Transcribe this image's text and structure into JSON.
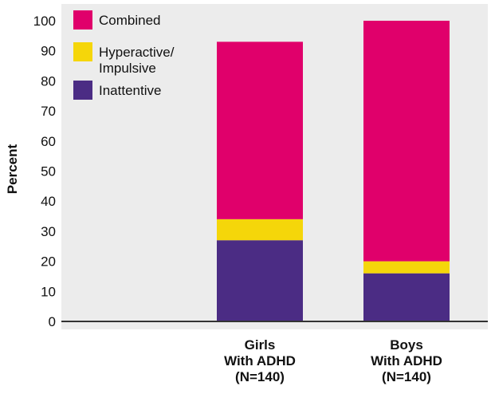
{
  "chart_data": {
    "type": "bar",
    "stacked": true,
    "categories": [
      [
        "Girls",
        "With ADHD",
        "(N=140)"
      ],
      [
        "Boys",
        "With ADHD",
        "(N=140)"
      ]
    ],
    "series": [
      {
        "name": "Inattentive",
        "legend_lines": [
          "Inattentive"
        ],
        "color": "#4b2c84",
        "values": [
          27,
          16
        ]
      },
      {
        "name": "Hyperactive/ Impulsive",
        "legend_lines": [
          "Hyperactive/",
          "Impulsive"
        ],
        "color": "#f5d60a",
        "values": [
          7,
          4
        ]
      },
      {
        "name": "Combined",
        "legend_lines": [
          "Combined"
        ],
        "color": "#e0006b",
        "values": [
          59,
          80
        ]
      }
    ],
    "legend_order": [
      "Combined",
      "Hyperactive/ Impulsive",
      "Inattentive"
    ],
    "ylabel": "Percent",
    "xlabel": "",
    "ylim": [
      0,
      100
    ],
    "yticks": [
      0,
      10,
      20,
      30,
      40,
      50,
      60,
      70,
      80,
      90,
      100
    ],
    "legend_position": "top-left",
    "background_color": "#ececec",
    "baseline_color": "#333333"
  }
}
